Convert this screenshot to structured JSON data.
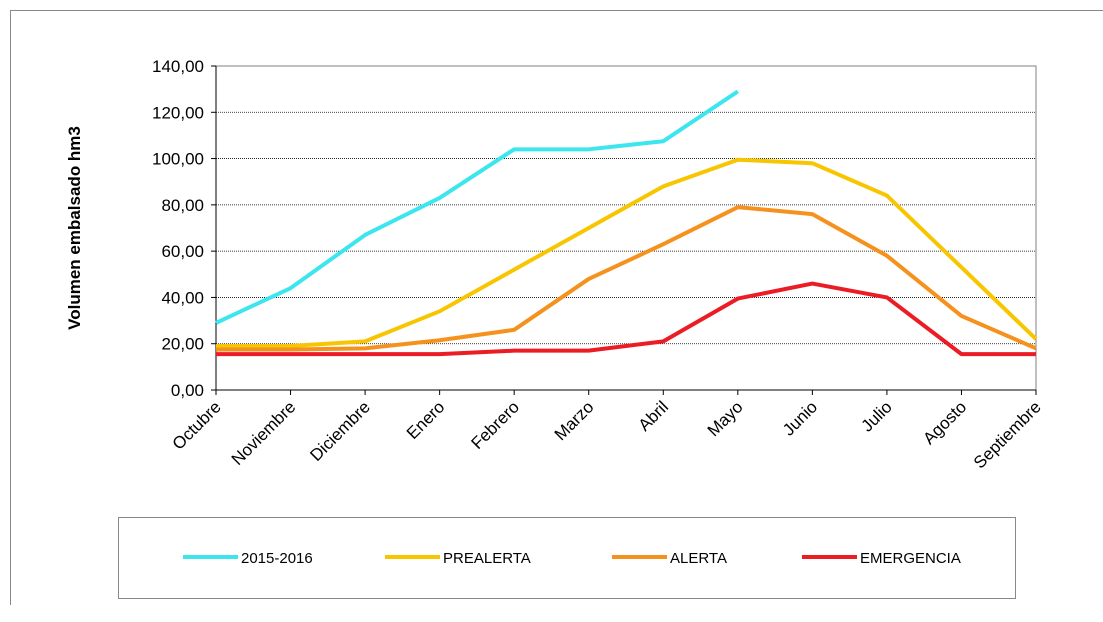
{
  "chart_data": {
    "type": "line",
    "y_label": "Volumen embalsado hm3",
    "categories": [
      "Octubre",
      "Noviembre",
      "Diciembre",
      "Enero",
      "Febrero",
      "Marzo",
      "Abril",
      "Mayo",
      "Junio",
      "Julio",
      "Agosto",
      "Septiembre"
    ],
    "series": [
      {
        "name": "2015-2016",
        "color": "#3de6ef",
        "values": [
          29,
          44,
          67,
          83,
          104,
          104,
          107.5,
          129,
          null,
          null,
          null,
          null
        ]
      },
      {
        "name": "PREALERTA",
        "color": "#f7c600",
        "values": [
          19,
          19,
          21,
          34,
          52,
          70,
          88,
          99.5,
          98,
          84,
          53,
          22
        ]
      },
      {
        "name": "ALERTA",
        "color": "#f5921e",
        "values": [
          17.5,
          17.5,
          18,
          21.5,
          26,
          48,
          63,
          79,
          76,
          58,
          32,
          18
        ]
      },
      {
        "name": "EMERGENCIA",
        "color": "#ec1c24",
        "values": [
          15.5,
          15.5,
          15.5,
          15.5,
          17,
          17,
          21,
          39.5,
          46,
          40,
          15.5,
          15.5
        ]
      }
    ],
    "ylim": [
      0,
      140
    ],
    "yticks": [
      {
        "value": 0,
        "label": "0,00"
      },
      {
        "value": 20,
        "label": "20,00"
      },
      {
        "value": 40,
        "label": "40,00"
      },
      {
        "value": 60,
        "label": "60,00"
      },
      {
        "value": 80,
        "label": "80,00"
      },
      {
        "value": 100,
        "label": "100,00"
      },
      {
        "value": 120,
        "label": "120,00"
      },
      {
        "value": 140,
        "label": "140,00"
      }
    ],
    "grid": true,
    "legend": "bottom"
  }
}
